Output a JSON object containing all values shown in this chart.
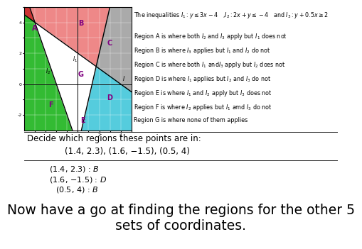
{
  "title_bottom": "Now have a go at finding the regions for the other 5\nsets of coordinates.",
  "inequalities_text": "The inequalities $I_1 : y \\leq 3x - 4$   ,$I_2 : 2x + y \\leq -4$   and $I_3 : y + 0.5x \\geq 2$",
  "regions": [
    "Region A is where both $I_2$ and $I_3$ apply but $I_1$ does not",
    "Region B is where $I_3$ applies but $I_1$ and $I_2$ do not",
    "Region C is where both $I_1$ and$I_3$ apply but $I_2$ does not",
    "Region D is where $I_1$ applies but $I_2$ and $I_3$ do not",
    "Region E is where $I_1$ and $I_2$ apply but $I_3$ does not",
    "Region F is where $I_2$ applies but $I_1$ amd $I_3$ do not",
    "Region G is where none of them applies"
  ],
  "decide_text": "Decide which regions these points are in:",
  "points_text": "(1.4, 2.3), (1.6, −1.5), (0.5, 4)",
  "answers": [
    "(1.4, 2.3) : $B$",
    "(1.6, −1.5) : $D$",
    "(0.5, 4) : $B$"
  ],
  "bg_color": "#ffffff",
  "graph_xlim": [
    -5,
    5
  ],
  "graph_ylim": [
    -3,
    5
  ],
  "color_A": "#cc3333",
  "color_B": "#ee8888",
  "color_C": "#aaaaaa",
  "color_D": "#55ccdd",
  "color_E": "#9966bb",
  "color_F": "#33bb33",
  "color_G": "#ffffff"
}
